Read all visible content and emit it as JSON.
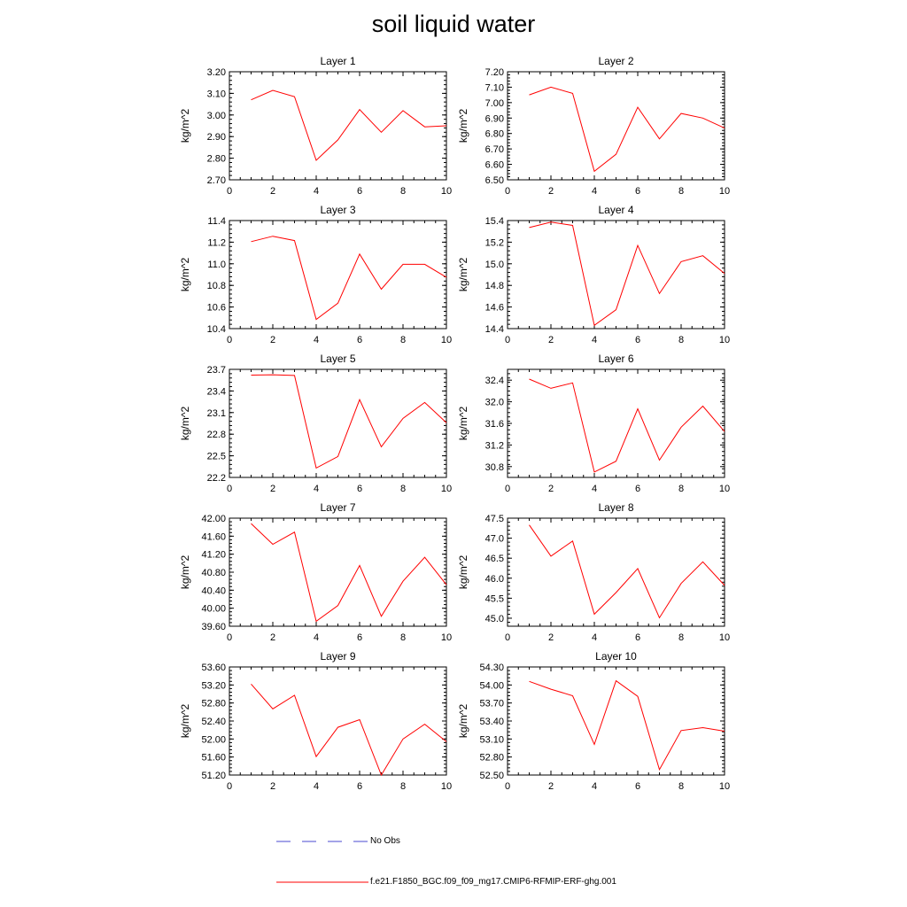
{
  "page_title": "soil liquid water",
  "legend": {
    "obs_label": "No Obs",
    "obs_color": "#4a4ad0",
    "model_label": "f.e21.F1850_BGC.f09_f09_mg17.CMIP6-RFMIP-ERF-ghg.001",
    "model_color": "#ff0000"
  },
  "chart_data": [
    {
      "type": "line",
      "title": "Layer 1",
      "ylabel": "kg/m^2",
      "xlim": [
        0,
        10
      ],
      "xticks": [
        0,
        2,
        4,
        6,
        8,
        10
      ],
      "ylim": [
        2.7,
        3.2
      ],
      "yticks": [
        "2.70",
        "2.80",
        "2.90",
        "3.00",
        "3.10",
        "3.20"
      ],
      "x": [
        1,
        2,
        3,
        4,
        5,
        6,
        7,
        8,
        9,
        10
      ],
      "values": [
        3.07,
        3.114,
        3.085,
        2.79,
        2.885,
        3.025,
        2.92,
        3.02,
        2.945,
        2.95
      ]
    },
    {
      "type": "line",
      "title": "Layer 2",
      "ylabel": "kg/m^2",
      "xlim": [
        0,
        10
      ],
      "xticks": [
        0,
        2,
        4,
        6,
        8,
        10
      ],
      "ylim": [
        6.5,
        7.2
      ],
      "yticks": [
        "6.50",
        "6.60",
        "6.70",
        "6.80",
        "6.90",
        "7.00",
        "7.10",
        "7.20"
      ],
      "x": [
        1,
        2,
        3,
        4,
        5,
        6,
        7,
        8,
        9,
        10
      ],
      "values": [
        7.05,
        7.1,
        7.06,
        6.555,
        6.665,
        6.97,
        6.765,
        6.93,
        6.9,
        6.835
      ]
    },
    {
      "type": "line",
      "title": "Layer 3",
      "ylabel": "kg/m^2",
      "xlim": [
        0,
        10
      ],
      "xticks": [
        0,
        2,
        4,
        6,
        8,
        10
      ],
      "ylim": [
        10.4,
        11.4
      ],
      "yticks": [
        "10.4",
        "10.6",
        "10.8",
        "11.0",
        "11.2",
        "11.4"
      ],
      "x": [
        1,
        2,
        3,
        4,
        5,
        6,
        7,
        8,
        9,
        10
      ],
      "values": [
        11.205,
        11.255,
        11.215,
        10.485,
        10.635,
        11.09,
        10.765,
        10.995,
        10.995,
        10.875
      ]
    },
    {
      "type": "line",
      "title": "Layer 4",
      "ylabel": "kg/m^2",
      "xlim": [
        0,
        10
      ],
      "xticks": [
        0,
        2,
        4,
        6,
        8,
        10
      ],
      "ylim": [
        14.4,
        15.4
      ],
      "yticks": [
        "14.4",
        "14.6",
        "14.8",
        "15.0",
        "15.2",
        "15.4"
      ],
      "x": [
        1,
        2,
        3,
        4,
        5,
        6,
        7,
        8,
        9,
        10
      ],
      "values": [
        15.335,
        15.385,
        15.355,
        14.43,
        14.575,
        15.17,
        14.725,
        15.02,
        15.075,
        14.91
      ]
    },
    {
      "type": "line",
      "title": "Layer 5",
      "ylabel": "kg/m^2",
      "xlim": [
        0,
        10
      ],
      "xticks": [
        0,
        2,
        4,
        6,
        8,
        10
      ],
      "ylim": [
        22.2,
        23.7
      ],
      "yticks": [
        "22.2",
        "22.5",
        "22.8",
        "23.1",
        "23.4",
        "23.7"
      ],
      "x": [
        1,
        2,
        3,
        4,
        5,
        6,
        7,
        8,
        9,
        10
      ],
      "values": [
        23.62,
        23.625,
        23.615,
        22.33,
        22.49,
        23.28,
        22.625,
        23.02,
        23.24,
        22.96
      ]
    },
    {
      "type": "line",
      "title": "Layer 6",
      "ylabel": "kg/m^2",
      "xlim": [
        0,
        10
      ],
      "xticks": [
        0,
        2,
        4,
        6,
        8,
        10
      ],
      "ylim": [
        30.6,
        32.6
      ],
      "yticks": [
        "30.8",
        "31.2",
        "31.6",
        "32.0",
        "32.4"
      ],
      "x": [
        1,
        2,
        3,
        4,
        5,
        6,
        7,
        8,
        9,
        10
      ],
      "values": [
        32.42,
        32.25,
        32.35,
        30.7,
        30.9,
        31.87,
        30.92,
        31.53,
        31.92,
        31.45
      ]
    },
    {
      "type": "line",
      "title": "Layer 7",
      "ylabel": "kg/m^2",
      "xlim": [
        0,
        10
      ],
      "xticks": [
        0,
        2,
        4,
        6,
        8,
        10
      ],
      "ylim": [
        39.6,
        42.0
      ],
      "yticks": [
        "39.60",
        "40.00",
        "40.40",
        "40.80",
        "41.20",
        "41.60",
        "42.00"
      ],
      "x": [
        1,
        2,
        3,
        4,
        5,
        6,
        7,
        8,
        9,
        10
      ],
      "values": [
        41.88,
        41.42,
        41.69,
        39.71,
        40.06,
        40.95,
        39.82,
        40.6,
        41.13,
        40.52
      ]
    },
    {
      "type": "line",
      "title": "Layer 8",
      "ylabel": "kg/m^2",
      "xlim": [
        0,
        10
      ],
      "xticks": [
        0,
        2,
        4,
        6,
        8,
        10
      ],
      "ylim": [
        44.8,
        47.5
      ],
      "yticks": [
        "45.0",
        "45.5",
        "46.0",
        "46.5",
        "47.0",
        "47.5"
      ],
      "x": [
        1,
        2,
        3,
        4,
        5,
        6,
        7,
        8,
        9,
        10
      ],
      "values": [
        47.33,
        46.55,
        46.93,
        45.1,
        45.64,
        46.24,
        45.01,
        45.87,
        46.41,
        45.82
      ]
    },
    {
      "type": "line",
      "title": "Layer 9",
      "ylabel": "kg/m^2",
      "xlim": [
        0,
        10
      ],
      "xticks": [
        0,
        2,
        4,
        6,
        8,
        10
      ],
      "ylim": [
        51.2,
        53.6
      ],
      "yticks": [
        "51.20",
        "51.60",
        "52.00",
        "52.40",
        "52.80",
        "53.20",
        "53.60"
      ],
      "x": [
        1,
        2,
        3,
        4,
        5,
        6,
        7,
        8,
        9,
        10
      ],
      "values": [
        53.22,
        52.67,
        52.97,
        51.61,
        52.26,
        52.43,
        51.2,
        52.0,
        52.33,
        51.94
      ]
    },
    {
      "type": "line",
      "title": "Layer 10",
      "ylabel": "kg/m^2",
      "xlim": [
        0,
        10
      ],
      "xticks": [
        0,
        2,
        4,
        6,
        8,
        10
      ],
      "ylim": [
        52.5,
        54.3
      ],
      "yticks": [
        "52.50",
        "52.80",
        "53.10",
        "53.40",
        "53.70",
        "54.00",
        "54.30"
      ],
      "x": [
        1,
        2,
        3,
        4,
        5,
        6,
        7,
        8,
        9,
        10
      ],
      "values": [
        54.06,
        53.93,
        53.82,
        53.01,
        54.07,
        53.81,
        52.59,
        53.24,
        53.29,
        53.23
      ]
    }
  ]
}
